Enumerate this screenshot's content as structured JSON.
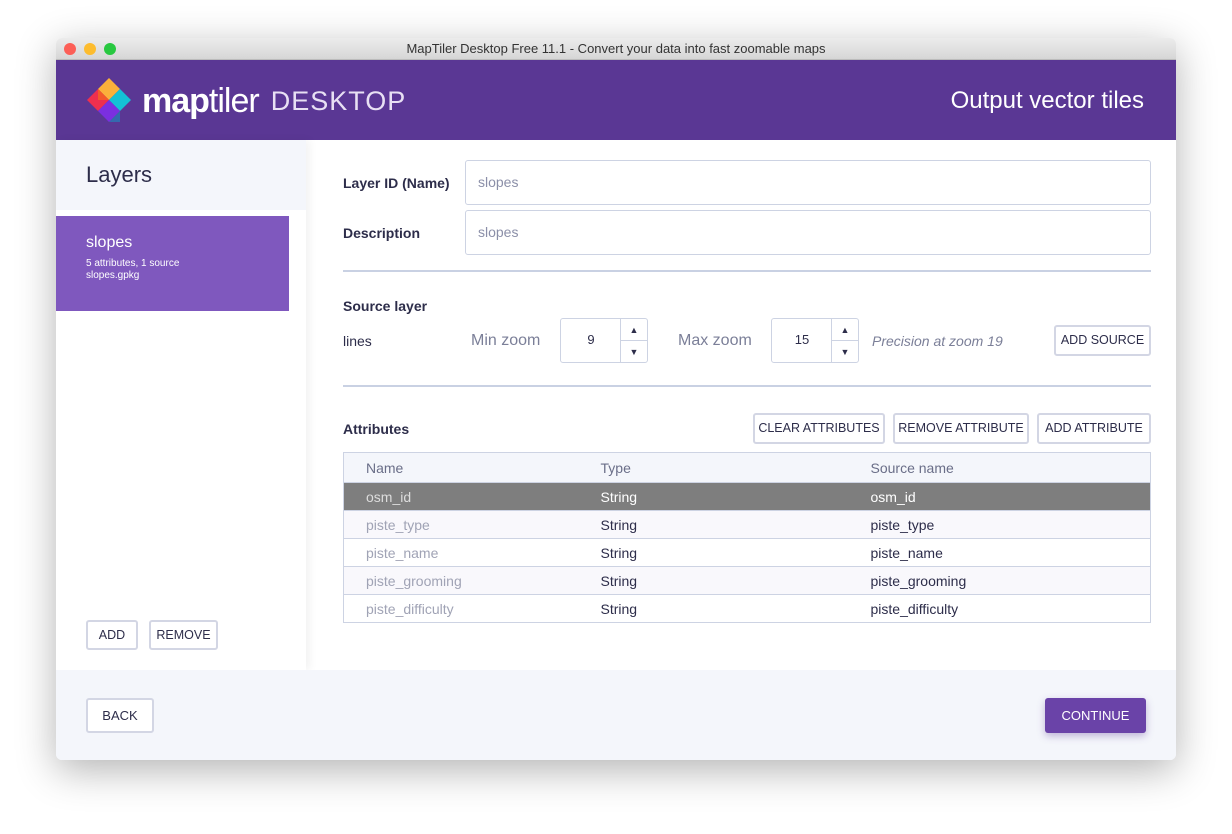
{
  "window": {
    "title": "MapTiler Desktop Free 11.1 - Convert your data into fast zoomable maps"
  },
  "header": {
    "logo_bold": "map",
    "logo_light": "tiler",
    "logo_product": "DESKTOP",
    "title": "Output vector tiles"
  },
  "sidebar": {
    "title": "Layers",
    "layers": [
      {
        "name": "slopes",
        "summary": "5 attributes, 1 source",
        "file": "slopes.gpkg"
      }
    ],
    "add_label": "ADD",
    "remove_label": "REMOVE"
  },
  "form": {
    "layer_id_label": "Layer ID (Name)",
    "layer_id_value": "slopes",
    "description_label": "Description",
    "description_value": "slopes",
    "source_layer_label": "Source layer",
    "source_name": "lines",
    "min_zoom_label": "Min zoom",
    "min_zoom": "9",
    "max_zoom_label": "Max zoom",
    "max_zoom": "15",
    "precision": "Precision at zoom 19",
    "add_source": "ADD SOURCE"
  },
  "attributes": {
    "label": "Attributes",
    "clear": "CLEAR ATTRIBUTES",
    "remove": "REMOVE ATTRIBUTE",
    "add": "ADD ATTRIBUTE",
    "columns": [
      "Name",
      "Type",
      "Source name"
    ],
    "rows": [
      [
        "osm_id",
        "String",
        "osm_id"
      ],
      [
        "piste_type",
        "String",
        "piste_type"
      ],
      [
        "piste_name",
        "String",
        "piste_name"
      ],
      [
        "piste_grooming",
        "String",
        "piste_grooming"
      ],
      [
        "piste_difficulty",
        "String",
        "piste_difficulty"
      ]
    ]
  },
  "footer": {
    "back": "BACK",
    "continue": "CONTINUE"
  },
  "colors": {
    "brand": "#5a3794",
    "selected_layer": "#7f58be",
    "continue": "#6a43a8"
  }
}
